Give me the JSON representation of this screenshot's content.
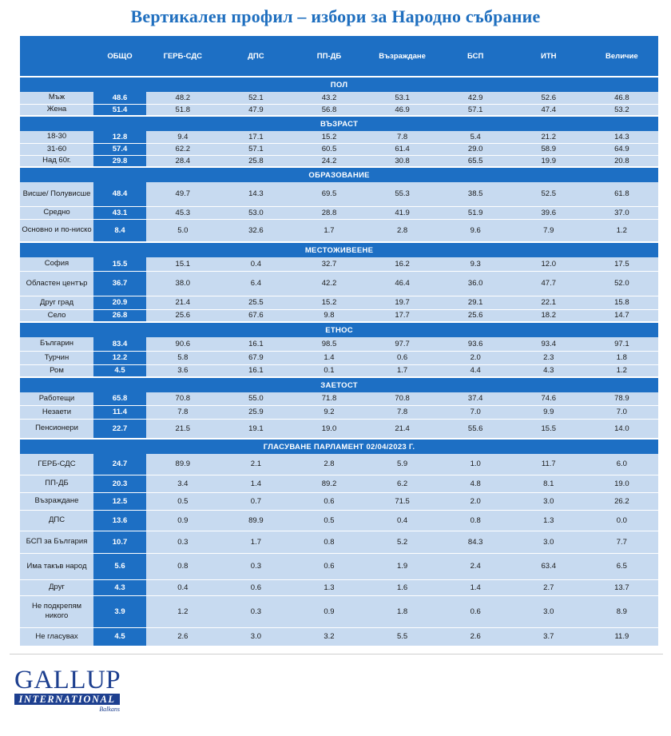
{
  "title": "Вертикален профил – избори за Народно събрание",
  "header": {
    "total": "ОБЩО",
    "parties": [
      "ГЕРБ-СДС",
      "ДПС",
      "ПП-ДБ",
      "Възраждане",
      "БСП",
      "ИТН",
      "Величие"
    ]
  },
  "sections": [
    {
      "name": "ПОЛ",
      "rows": [
        {
          "label": "Мъж",
          "total": "48.6",
          "values": [
            "48.2",
            "52.1",
            "43.2",
            "53.1",
            "42.9",
            "52.6",
            "46.8"
          ]
        },
        {
          "label": "Жена",
          "total": "51.4",
          "values": [
            "51.8",
            "47.9",
            "56.8",
            "46.9",
            "57.1",
            "47.4",
            "53.2"
          ]
        }
      ]
    },
    {
      "name": "ВЪЗРАСТ",
      "rows": [
        {
          "label": "18-30",
          "total": "12.8",
          "values": [
            "9.4",
            "17.1",
            "15.2",
            "7.8",
            "5.4",
            "21.2",
            "14.3"
          ]
        },
        {
          "label": "31-60",
          "total": "57.4",
          "values": [
            "62.2",
            "57.1",
            "60.5",
            "61.4",
            "29.0",
            "58.9",
            "64.9"
          ]
        },
        {
          "label": "Над 60г.",
          "total": "29.8",
          "values": [
            "28.4",
            "25.8",
            "24.2",
            "30.8",
            "65.5",
            "19.9",
            "20.8"
          ]
        }
      ]
    },
    {
      "name": "ОБРАЗОВАНИЕ",
      "rows": [
        {
          "label": "Висше/ Полувисше",
          "total": "48.4",
          "values": [
            "49.7",
            "14.3",
            "69.5",
            "55.3",
            "38.5",
            "52.5",
            "61.8"
          ]
        },
        {
          "label": "Средно",
          "total": "43.1",
          "values": [
            "45.3",
            "53.0",
            "28.8",
            "41.9",
            "51.9",
            "39.6",
            "37.0"
          ]
        },
        {
          "label": "Основно и по-ниско",
          "total": "8.4",
          "values": [
            "5.0",
            "32.6",
            "1.7",
            "2.8",
            "9.6",
            "7.9",
            "1.2"
          ]
        }
      ]
    },
    {
      "name": "МЕСТОЖИВЕЕНЕ",
      "rows": [
        {
          "label": "София",
          "total": "15.5",
          "values": [
            "15.1",
            "0.4",
            "32.7",
            "16.2",
            "9.3",
            "12.0",
            "17.5"
          ]
        },
        {
          "label": "Областен център",
          "total": "36.7",
          "values": [
            "38.0",
            "6.4",
            "42.2",
            "46.4",
            "36.0",
            "47.7",
            "52.0"
          ]
        },
        {
          "label": "Друг град",
          "total": "20.9",
          "values": [
            "21.4",
            "25.5",
            "15.2",
            "19.7",
            "29.1",
            "22.1",
            "15.8"
          ]
        },
        {
          "label": "Село",
          "total": "26.8",
          "values": [
            "25.6",
            "67.6",
            "9.8",
            "17.7",
            "25.6",
            "18.2",
            "14.7"
          ]
        }
      ]
    },
    {
      "name": "ЕТНОС",
      "rows": [
        {
          "label": "Българин",
          "total": "83.4",
          "values": [
            "90.6",
            "16.1",
            "98.5",
            "97.7",
            "93.6",
            "93.4",
            "97.1"
          ]
        },
        {
          "label": "Турчин",
          "total": "12.2",
          "values": [
            "5.8",
            "67.9",
            "1.4",
            "0.6",
            "2.0",
            "2.3",
            "1.8"
          ]
        },
        {
          "label": "Ром",
          "total": "4.5",
          "values": [
            "3.6",
            "16.1",
            "0.1",
            "1.7",
            "4.4",
            "4.3",
            "1.2"
          ]
        }
      ]
    },
    {
      "name": "ЗАЕТОСТ",
      "rows": [
        {
          "label": "Работещи",
          "total": "65.8",
          "values": [
            "70.8",
            "55.0",
            "71.8",
            "70.8",
            "37.4",
            "74.6",
            "78.9"
          ]
        },
        {
          "label": "Незаети",
          "total": "11.4",
          "values": [
            "7.8",
            "25.9",
            "9.2",
            "7.8",
            "7.0",
            "9.9",
            "7.0"
          ]
        },
        {
          "label": "Пенсионери",
          "total": "22.7",
          "values": [
            "21.5",
            "19.1",
            "19.0",
            "21.4",
            "55.6",
            "15.5",
            "14.0"
          ]
        }
      ]
    },
    {
      "name": "ГЛАСУВАНЕ ПАРЛАМЕНТ 02/04/2023 Г.",
      "rows": [
        {
          "label": "ГЕРБ-СДС",
          "total": "24.7",
          "values": [
            "89.9",
            "2.1",
            "2.8",
            "5.9",
            "1.0",
            "11.7",
            "6.0"
          ]
        },
        {
          "label": "ПП-ДБ",
          "total": "20.3",
          "values": [
            "3.4",
            "1.4",
            "89.2",
            "6.2",
            "4.8",
            "8.1",
            "19.0"
          ]
        },
        {
          "label": "Възраждане",
          "total": "12.5",
          "values": [
            "0.5",
            "0.7",
            "0.6",
            "71.5",
            "2.0",
            "3.0",
            "26.2"
          ]
        },
        {
          "label": "ДПС",
          "total": "13.6",
          "values": [
            "0.9",
            "89.9",
            "0.5",
            "0.4",
            "0.8",
            "1.3",
            "0.0"
          ]
        },
        {
          "label": "БСП за България",
          "total": "10.7",
          "values": [
            "0.3",
            "1.7",
            "0.8",
            "5.2",
            "84.3",
            "3.0",
            "7.7"
          ]
        },
        {
          "label": "Има такъв народ",
          "total": "5.6",
          "values": [
            "0.8",
            "0.3",
            "0.6",
            "1.9",
            "2.4",
            "63.4",
            "6.5"
          ]
        },
        {
          "label": "Друг",
          "total": "4.3",
          "values": [
            "0.4",
            "0.6",
            "1.3",
            "1.6",
            "1.4",
            "2.7",
            "13.7"
          ]
        },
        {
          "label": "Не подкрепям никого",
          "total": "3.9",
          "values": [
            "1.2",
            "0.3",
            "0.9",
            "1.8",
            "0.6",
            "3.0",
            "8.9"
          ]
        },
        {
          "label": "Не гласувах",
          "total": "4.5",
          "values": [
            "2.6",
            "3.0",
            "3.2",
            "5.5",
            "2.6",
            "3.7",
            "11.9"
          ]
        }
      ]
    }
  ],
  "logo": {
    "word": "GALLUP",
    "bar": "INTERNATIONAL",
    "sub": "Balkans"
  },
  "colors": {
    "accent": "#1d6fc4",
    "row_bg": "#c7daf0",
    "title": "#1f6fbf",
    "logo": "#1d3f8f"
  }
}
